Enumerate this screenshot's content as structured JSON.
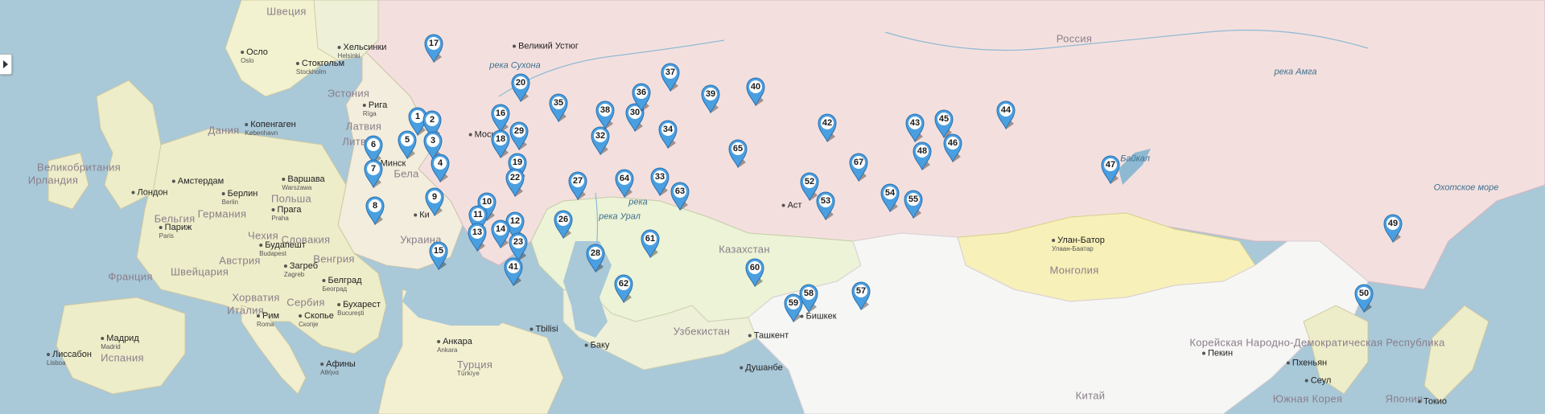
{
  "map": {
    "countries": [
      {
        "id": "russia",
        "label": "Россия"
      },
      {
        "id": "kazakhstan",
        "label": "Казахстан"
      },
      {
        "id": "mongolia",
        "label": "Монголия"
      },
      {
        "id": "china",
        "label": "Китай"
      },
      {
        "id": "ukraine",
        "label": "Украина"
      },
      {
        "id": "belarus",
        "label": "Бела"
      },
      {
        "id": "sweden",
        "label": "Швеция"
      },
      {
        "id": "estonia",
        "label": "Эстония"
      },
      {
        "id": "latvia",
        "label": "Латвия"
      },
      {
        "id": "lithuania",
        "label": "Литва"
      },
      {
        "id": "denmark",
        "label": "Дания"
      },
      {
        "id": "uk",
        "label": "Великобритания"
      },
      {
        "id": "ireland",
        "label": "Ирландия"
      },
      {
        "id": "belgium",
        "label": "Бельгия"
      },
      {
        "id": "germany",
        "label": "Германия"
      },
      {
        "id": "poland",
        "label": "Польша"
      },
      {
        "id": "czech",
        "label": "Чехия"
      },
      {
        "id": "slovakia",
        "label": "Словакия"
      },
      {
        "id": "austria",
        "label": "Австрия"
      },
      {
        "id": "hungary",
        "label": "Венгрия"
      },
      {
        "id": "switzerland",
        "label": "Швейцария"
      },
      {
        "id": "france",
        "label": "Франция"
      },
      {
        "id": "croatia",
        "label": "Хорватия"
      },
      {
        "id": "serbia",
        "label": "Сербия"
      },
      {
        "id": "italy",
        "label": "Италия"
      },
      {
        "id": "spain",
        "label": "Испания"
      },
      {
        "id": "turkey",
        "label": "Турция",
        "sub": "Türkiye"
      },
      {
        "id": "uzbekistan",
        "label": "Узбекистан"
      },
      {
        "id": "north-korea",
        "label": "Корейская Народно-Демократическая Республика"
      },
      {
        "id": "south-korea",
        "label": "Южная Корея"
      },
      {
        "id": "japan",
        "label": "Япония"
      }
    ],
    "water": [
      {
        "id": "sukhona",
        "label": "река Сухона"
      },
      {
        "id": "amga",
        "label": "река Амга"
      },
      {
        "id": "baikal",
        "label": "оз. Байкал"
      },
      {
        "id": "okhotsk",
        "label": "Охотское море"
      },
      {
        "id": "ural",
        "label": "река Урал"
      },
      {
        "id": "river-center",
        "label": "река"
      }
    ],
    "cities": [
      {
        "id": "helsinki",
        "label": "Хельсинки",
        "sub": "Helsinki"
      },
      {
        "id": "oslo",
        "label": "Осло",
        "sub": "Oslo"
      },
      {
        "id": "stockholm",
        "label": "Стокгольм",
        "sub": "Stockholm"
      },
      {
        "id": "riga",
        "label": "Рига",
        "sub": "Rīga"
      },
      {
        "id": "copenhagen",
        "label": "Копенгаген",
        "sub": "København"
      },
      {
        "id": "amsterdam",
        "label": "Амстердам"
      },
      {
        "id": "london",
        "label": "Лондон"
      },
      {
        "id": "berlin",
        "label": "Берлин",
        "sub": "Berlin"
      },
      {
        "id": "warsaw",
        "label": "Варшава",
        "sub": "Warszawa"
      },
      {
        "id": "prague",
        "label": "Прага",
        "sub": "Praha"
      },
      {
        "id": "paris",
        "label": "Париж",
        "sub": "Paris"
      },
      {
        "id": "budapest",
        "label": "Будапешт",
        "sub": "Budapest"
      },
      {
        "id": "zagreb",
        "label": "Загреб",
        "sub": "Zagreb"
      },
      {
        "id": "belgrade",
        "label": "Белград",
        "sub": "Београд"
      },
      {
        "id": "bucharest",
        "label": "Бухарест",
        "sub": "București"
      },
      {
        "id": "rome",
        "label": "Рим",
        "sub": "Roma"
      },
      {
        "id": "skopje",
        "label": "Скопье",
        "sub": "Скопје"
      },
      {
        "id": "madrid",
        "label": "Мадрид",
        "sub": "Madrid"
      },
      {
        "id": "lisbon",
        "label": "Лиссабон",
        "sub": "Lisboa"
      },
      {
        "id": "ankara",
        "label": "Анкара",
        "sub": "Ankara"
      },
      {
        "id": "athens",
        "label": "Афины",
        "sub": "Αθήνα"
      },
      {
        "id": "tbilisi",
        "label": "Tbilisi"
      },
      {
        "id": "baku",
        "label": "Баку"
      },
      {
        "id": "tashkent",
        "label": "Ташкент"
      },
      {
        "id": "bishkek",
        "label": "Бишкек"
      },
      {
        "id": "dushanbe",
        "label": "Душанбе"
      },
      {
        "id": "ulaanbaatar",
        "label": "Улан-Батор",
        "sub": "Улаан-Баатар"
      },
      {
        "id": "beijing",
        "label": "Пекин"
      },
      {
        "id": "pyongyang",
        "label": "Пхеньян"
      },
      {
        "id": "seoul",
        "label": "Сеул"
      },
      {
        "id": "tokyo",
        "label": "Токио"
      },
      {
        "id": "veliky-ustyug",
        "label": "Великий Устюг"
      },
      {
        "id": "minsk",
        "label": "Минск"
      },
      {
        "id": "moscow",
        "label": "Моск"
      },
      {
        "id": "kiev",
        "label": "Ки"
      },
      {
        "id": "astana",
        "label": "Аст"
      }
    ],
    "markers": [
      "1",
      "2",
      "3",
      "4",
      "5",
      "6",
      "7",
      "8",
      "9",
      "10",
      "11",
      "12",
      "13",
      "14",
      "15",
      "16",
      "17",
      "18",
      "19",
      "20",
      "22",
      "23",
      "26",
      "27",
      "28",
      "29",
      "30",
      "32",
      "33",
      "34",
      "35",
      "36",
      "37",
      "38",
      "39",
      "40",
      "41",
      "42",
      "43",
      "44",
      "45",
      "46",
      "47",
      "48",
      "49",
      "50",
      "52",
      "53",
      "54",
      "55",
      "57",
      "58",
      "59",
      "60",
      "61",
      "62",
      "63",
      "64",
      "65",
      "67"
    ],
    "colors": {
      "sea": "#a9c8d8",
      "russia": "#f3e0de",
      "neighbors": "#ecf3d6",
      "europe": "#eeedc9",
      "mongolia": "#f7f0b8",
      "china": "#f6f6f4",
      "marker": "#4a9fe0"
    }
  }
}
